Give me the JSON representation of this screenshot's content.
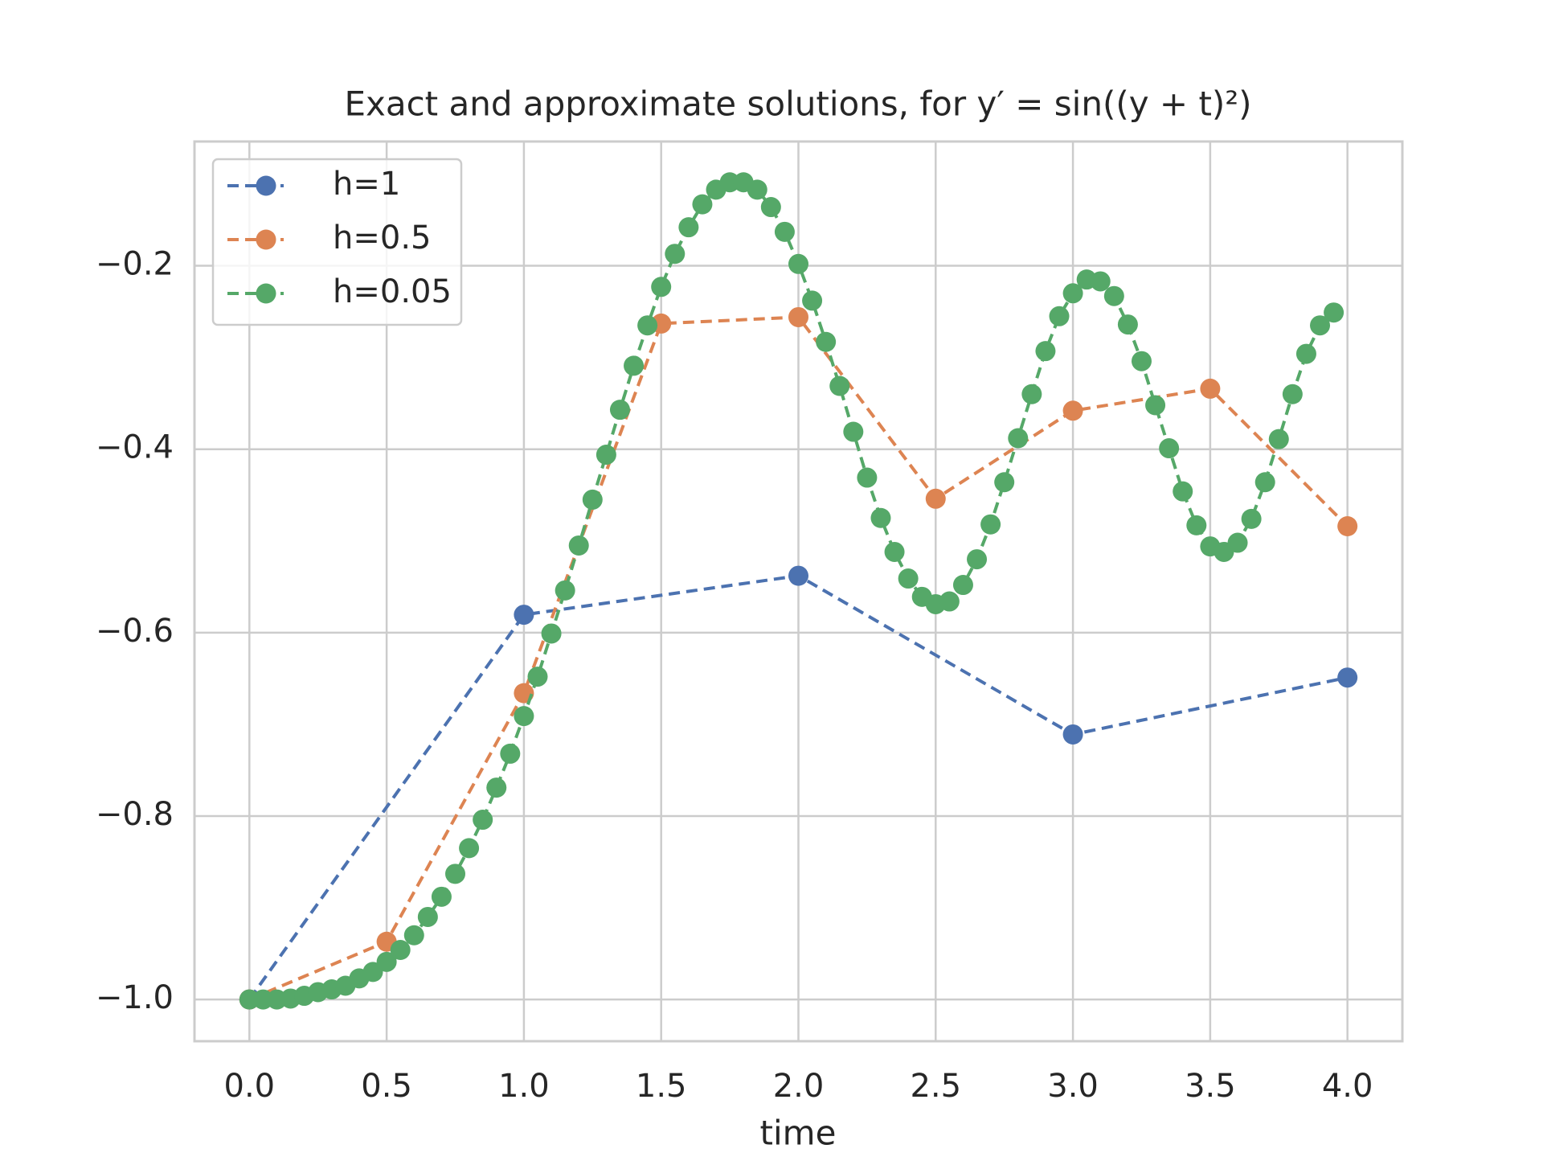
{
  "chart_data": {
    "type": "line",
    "title": "Exact and approximate solutions, for y′ = sin((y + t)²)",
    "xlabel": "time",
    "xlim": [
      -0.2,
      4.2
    ],
    "ylim": [
      -1.0455,
      -0.0645
    ],
    "xticks": [
      {
        "value": 0,
        "label": "0.0"
      },
      {
        "value": 0.5,
        "label": "0.5"
      },
      {
        "value": 1,
        "label": "1.0"
      },
      {
        "value": 1.5,
        "label": "1.5"
      },
      {
        "value": 2,
        "label": "2.0"
      },
      {
        "value": 2.5,
        "label": "2.5"
      },
      {
        "value": 3,
        "label": "3.0"
      },
      {
        "value": 3.5,
        "label": "3.5"
      },
      {
        "value": 4,
        "label": "4.0"
      }
    ],
    "yticks": [
      {
        "value": -1.0,
        "label": "−1.0"
      },
      {
        "value": -0.8,
        "label": "−0.8"
      },
      {
        "value": -0.6,
        "label": "−0.6"
      },
      {
        "value": -0.4,
        "label": "−0.4"
      },
      {
        "value": -0.2,
        "label": "−0.2"
      }
    ],
    "grid": true,
    "legend": "upper left",
    "series": [
      {
        "name": "h=1",
        "color": "#4c72b0",
        "x": [
          0,
          1,
          2,
          3,
          4
        ],
        "values": [
          -1.0,
          -0.5805,
          -0.538,
          -0.711,
          -0.649
        ]
      },
      {
        "name": "h=0.5",
        "color": "#dd8452",
        "x": [
          0,
          0.5,
          1,
          1.5,
          2,
          2.5,
          3,
          3.5,
          4
        ],
        "values": [
          -1.0,
          -0.937,
          -0.666,
          -0.263,
          -0.256,
          -0.454,
          -0.358,
          -0.334,
          -0.484
        ]
      },
      {
        "name": "h=0.05",
        "color": "#55a868",
        "x": [
          0,
          0.05,
          0.1,
          0.15,
          0.2,
          0.25,
          0.3,
          0.35,
          0.4,
          0.45,
          0.5,
          0.55,
          0.6,
          0.65,
          0.7,
          0.75,
          0.8,
          0.85,
          0.9,
          0.95,
          1,
          1.05,
          1.1,
          1.15,
          1.2,
          1.25,
          1.3,
          1.35,
          1.4,
          1.45,
          1.5,
          1.55,
          1.6,
          1.65,
          1.7,
          1.75,
          1.8,
          1.85,
          1.9,
          1.95,
          2,
          2.05,
          2.1,
          2.15,
          2.2,
          2.25,
          2.3,
          2.35,
          2.4,
          2.45,
          2.5,
          2.55,
          2.6,
          2.65,
          2.7,
          2.75,
          2.8,
          2.85,
          2.9,
          2.95,
          3,
          3.05,
          3.1,
          3.15,
          3.2,
          3.25,
          3.3,
          3.35,
          3.4,
          3.45,
          3.5,
          3.55,
          3.6,
          3.65,
          3.7,
          3.75,
          3.8,
          3.85,
          3.9,
          3.95
        ],
        "values": [
          -1.0,
          -1.0,
          -1.0,
          -0.999,
          -0.996,
          -0.992,
          -0.989,
          -0.985,
          -0.977,
          -0.97,
          -0.959,
          -0.946,
          -0.93,
          -0.91,
          -0.888,
          -0.863,
          -0.835,
          -0.804,
          -0.769,
          -0.732,
          -0.691,
          -0.648,
          -0.601,
          -0.554,
          -0.505,
          -0.455,
          -0.406,
          -0.357,
          -0.309,
          -0.265,
          -0.223,
          -0.187,
          -0.158,
          -0.133,
          -0.117,
          -0.109,
          -0.109,
          -0.117,
          -0.136,
          -0.163,
          -0.198,
          -0.238,
          -0.283,
          -0.331,
          -0.381,
          -0.431,
          -0.475,
          -0.512,
          -0.541,
          -0.561,
          -0.569,
          -0.566,
          -0.548,
          -0.52,
          -0.482,
          -0.436,
          -0.388,
          -0.34,
          -0.293,
          -0.255,
          -0.23,
          -0.215,
          -0.217,
          -0.233,
          -0.264,
          -0.304,
          -0.352,
          -0.399,
          -0.446,
          -0.483,
          -0.506,
          -0.512,
          -0.502,
          -0.476,
          -0.436,
          -0.389,
          -0.34,
          -0.296,
          -0.265,
          -0.251
        ]
      }
    ]
  }
}
